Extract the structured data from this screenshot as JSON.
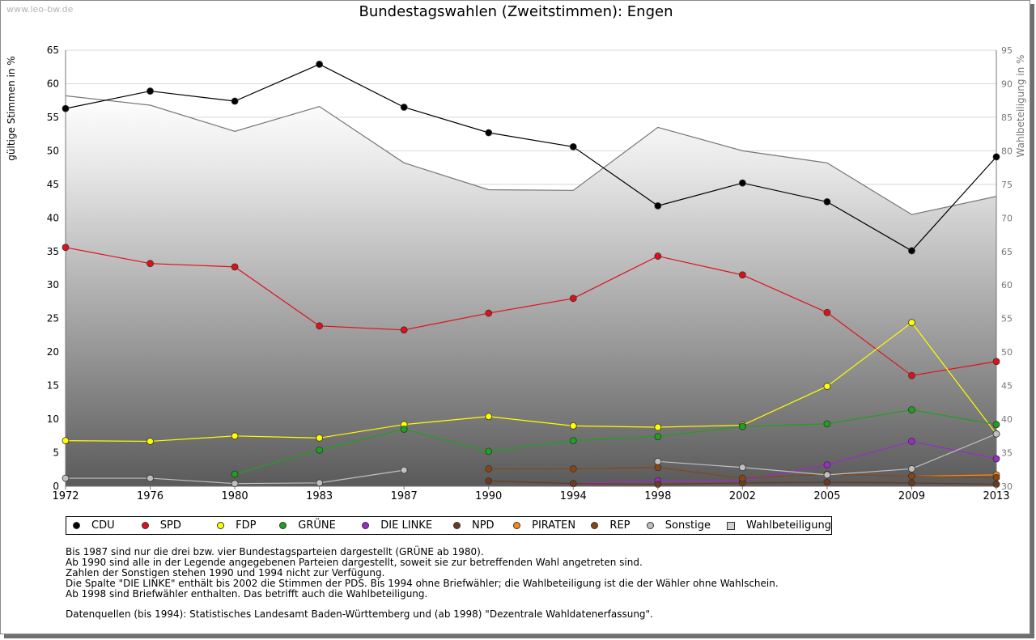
{
  "watermark": "www.leo-bw.de",
  "chart_data": {
    "type": "line",
    "title": "Bundestagswahlen (Zweitstimmen): Engen",
    "ylabel": "gültige Stimmen in %",
    "ylabel_right": "Wahlbeteiligung in %",
    "ylim": [
      0,
      65
    ],
    "ylim_right": [
      30,
      95
    ],
    "y_ticks": [
      "0",
      "5",
      "10",
      "15",
      "20",
      "25",
      "30",
      "35",
      "40",
      "45",
      "50",
      "55",
      "60",
      "65"
    ],
    "y_ticks_right": [
      "30",
      "35",
      "40",
      "45",
      "50",
      "55",
      "60",
      "65",
      "70",
      "75",
      "80",
      "85",
      "90",
      "95"
    ],
    "x": [
      "1972",
      "1976",
      "1980",
      "1983",
      "1987",
      "1990",
      "1994",
      "1998",
      "2002",
      "2005",
      "2009",
      "2013"
    ],
    "grid": true,
    "turnout": {
      "name": "Wahlbeteiligung",
      "axis": "right",
      "values": [
        88.2,
        86.8,
        82.9,
        86.6,
        78.2,
        74.2,
        74.1,
        83.5,
        80.0,
        78.2,
        70.5,
        73.2
      ]
    },
    "series": [
      {
        "name": "CDU",
        "color": "#000000",
        "values": [
          56.3,
          58.9,
          57.4,
          62.9,
          56.5,
          52.7,
          50.6,
          41.8,
          45.2,
          42.4,
          35.1,
          49.1
        ]
      },
      {
        "name": "SPD",
        "color": "#e0101a",
        "values": [
          35.6,
          33.2,
          32.7,
          23.9,
          23.3,
          25.8,
          28.0,
          34.3,
          31.5,
          25.9,
          16.5,
          18.6
        ]
      },
      {
        "name": "FDP",
        "color": "#ffff00",
        "values": [
          6.8,
          6.7,
          7.5,
          7.2,
          9.2,
          10.4,
          9.0,
          8.8,
          9.1,
          14.9,
          24.4,
          7.8
        ]
      },
      {
        "name": "GRÜNE",
        "color": "#1fa01f",
        "values": [
          null,
          null,
          1.8,
          5.4,
          8.5,
          5.2,
          6.8,
          7.4,
          8.9,
          9.3,
          11.4,
          9.2
        ]
      },
      {
        "name": "DIE LINKE",
        "color": "#9a2cc9",
        "values": [
          null,
          null,
          null,
          null,
          null,
          null,
          0.4,
          0.8,
          0.8,
          3.2,
          6.7,
          4.1
        ]
      },
      {
        "name": "NPD",
        "color": "#6b3a1f",
        "values": [
          null,
          null,
          null,
          null,
          null,
          0.8,
          0.4,
          0.3,
          0.5,
          0.6,
          0.5,
          0.3
        ]
      },
      {
        "name": "PIRATEN",
        "color": "#ff8a10",
        "values": [
          null,
          null,
          null,
          null,
          null,
          null,
          null,
          null,
          null,
          null,
          1.5,
          1.7
        ]
      },
      {
        "name": "REP",
        "color": "#8b4513",
        "values": [
          null,
          null,
          null,
          null,
          null,
          2.6,
          2.6,
          2.8,
          1.2,
          1.8,
          1.5,
          1.3
        ]
      },
      {
        "name": "Sonstige",
        "color": "#c0c0c0",
        "values": [
          1.2,
          1.2,
          0.4,
          0.5,
          2.4,
          null,
          null,
          3.7,
          2.8,
          1.7,
          2.6,
          7.8
        ]
      }
    ],
    "legend_position": "bottom"
  },
  "legend": [
    {
      "label": "CDU",
      "color": "#000000",
      "shape": "circle"
    },
    {
      "label": "SPD",
      "color": "#e0101a",
      "shape": "circle"
    },
    {
      "label": "FDP",
      "color": "#ffff00",
      "shape": "circle"
    },
    {
      "label": "GRÜNE",
      "color": "#1fa01f",
      "shape": "circle"
    },
    {
      "label": "DIE LINKE",
      "color": "#9a2cc9",
      "shape": "circle"
    },
    {
      "label": "NPD",
      "color": "#6b3a1f",
      "shape": "circle"
    },
    {
      "label": "PIRATEN",
      "color": "#ff8a10",
      "shape": "circle"
    },
    {
      "label": "REP",
      "color": "#8b4513",
      "shape": "circle"
    },
    {
      "label": "Sonstige",
      "color": "#c0c0c0",
      "shape": "circle"
    },
    {
      "label": "Wahlbeteiligung",
      "color": "#d0d0d0",
      "shape": "square"
    }
  ],
  "notes": [
    "Bis 1987 sind nur die drei bzw. vier Bundestagsparteien dargestellt (GRÜNE ab 1980).",
    "Ab 1990 sind alle in der Legende angegebenen Parteien dargestellt, soweit sie zur betreffenden Wahl angetreten sind.",
    "Zahlen der Sonstigen stehen 1990 und 1994 nicht zur Verfügung.",
    "Die Spalte \"DIE LINKE\" enthält bis 2002 die Stimmen der PDS. Bis 1994 ohne Briefwähler; die Wahlbeteiligung ist die der Wähler ohne Wahlschein.",
    "Ab 1998 sind Briefwähler enthalten. Das betrifft auch die Wahlbeteiligung."
  ],
  "source": "Datenquellen (bis 1994): Statistisches Landesamt Baden-Württemberg und (ab 1998) \"Dezentrale Wahldatenerfassung\"."
}
